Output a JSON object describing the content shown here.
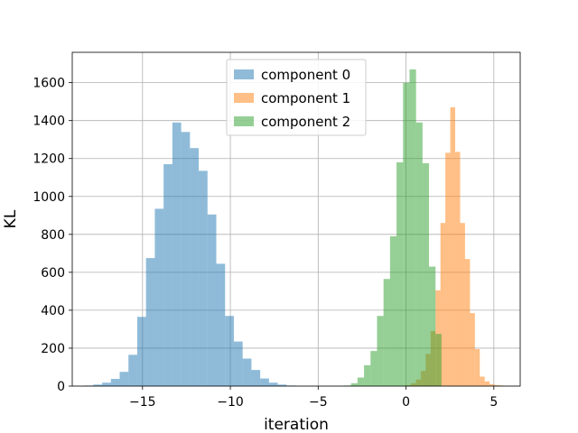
{
  "chart_data": {
    "type": "bar",
    "subtype": "overlapping-histogram",
    "xlabel": "iteration",
    "ylabel": "KL",
    "xlim": [
      -19.0,
      6.5
    ],
    "ylim": [
      0,
      1760
    ],
    "xticks": [
      -15,
      -10,
      -5,
      0,
      5
    ],
    "xtick_labels": [
      "−15",
      "−10",
      "−5",
      "0",
      "5"
    ],
    "yticks": [
      0,
      200,
      400,
      600,
      800,
      1000,
      1200,
      1400,
      1600
    ],
    "ytick_labels": [
      "0",
      "200",
      "400",
      "600",
      "800",
      "1000",
      "1200",
      "1400",
      "1600"
    ],
    "grid": true,
    "legend_position": "upper center",
    "bar_alpha": 0.5,
    "series": [
      {
        "name": "component 0",
        "color": "#1f77b4",
        "bin_edges": [
          -18.3,
          -17.8,
          -17.3,
          -16.8,
          -16.3,
          -15.8,
          -15.3,
          -14.8,
          -14.3,
          -13.8,
          -13.3,
          -12.8,
          -12.3,
          -11.8,
          -11.3,
          -10.8,
          -10.3,
          -9.8,
          -9.3,
          -8.8,
          -8.3,
          -7.8,
          -7.3,
          -6.8,
          -6.3
        ],
        "counts": [
          3,
          8,
          18,
          38,
          75,
          165,
          365,
          675,
          935,
          1170,
          1390,
          1340,
          1255,
          1135,
          905,
          645,
          370,
          235,
          145,
          85,
          40,
          18,
          8,
          3
        ]
      },
      {
        "name": "component 1",
        "color": "#ff7f0e",
        "bin_edges": [
          0.0,
          0.28,
          0.56,
          0.84,
          1.12,
          1.4,
          1.68,
          1.96,
          2.24,
          2.52,
          2.8,
          3.08,
          3.36,
          3.64,
          3.92,
          4.2,
          4.48,
          4.76,
          5.04,
          5.32,
          5.6
        ],
        "counts": [
          5,
          15,
          35,
          80,
          170,
          290,
          505,
          860,
          1230,
          1470,
          1235,
          860,
          670,
          385,
          195,
          50,
          25,
          10,
          5,
          3
        ]
      },
      {
        "name": "component 2",
        "color": "#2ca02c",
        "bin_edges": [
          -3.5,
          -3.13,
          -2.76,
          -2.39,
          -2.02,
          -1.65,
          -1.28,
          -0.91,
          -0.54,
          -0.17,
          0.2,
          0.57,
          0.94,
          1.31,
          1.68,
          2.02
        ],
        "counts": [
          3,
          15,
          45,
          110,
          185,
          370,
          565,
          790,
          1180,
          1600,
          1670,
          1390,
          1175,
          630,
          275
        ]
      }
    ]
  }
}
